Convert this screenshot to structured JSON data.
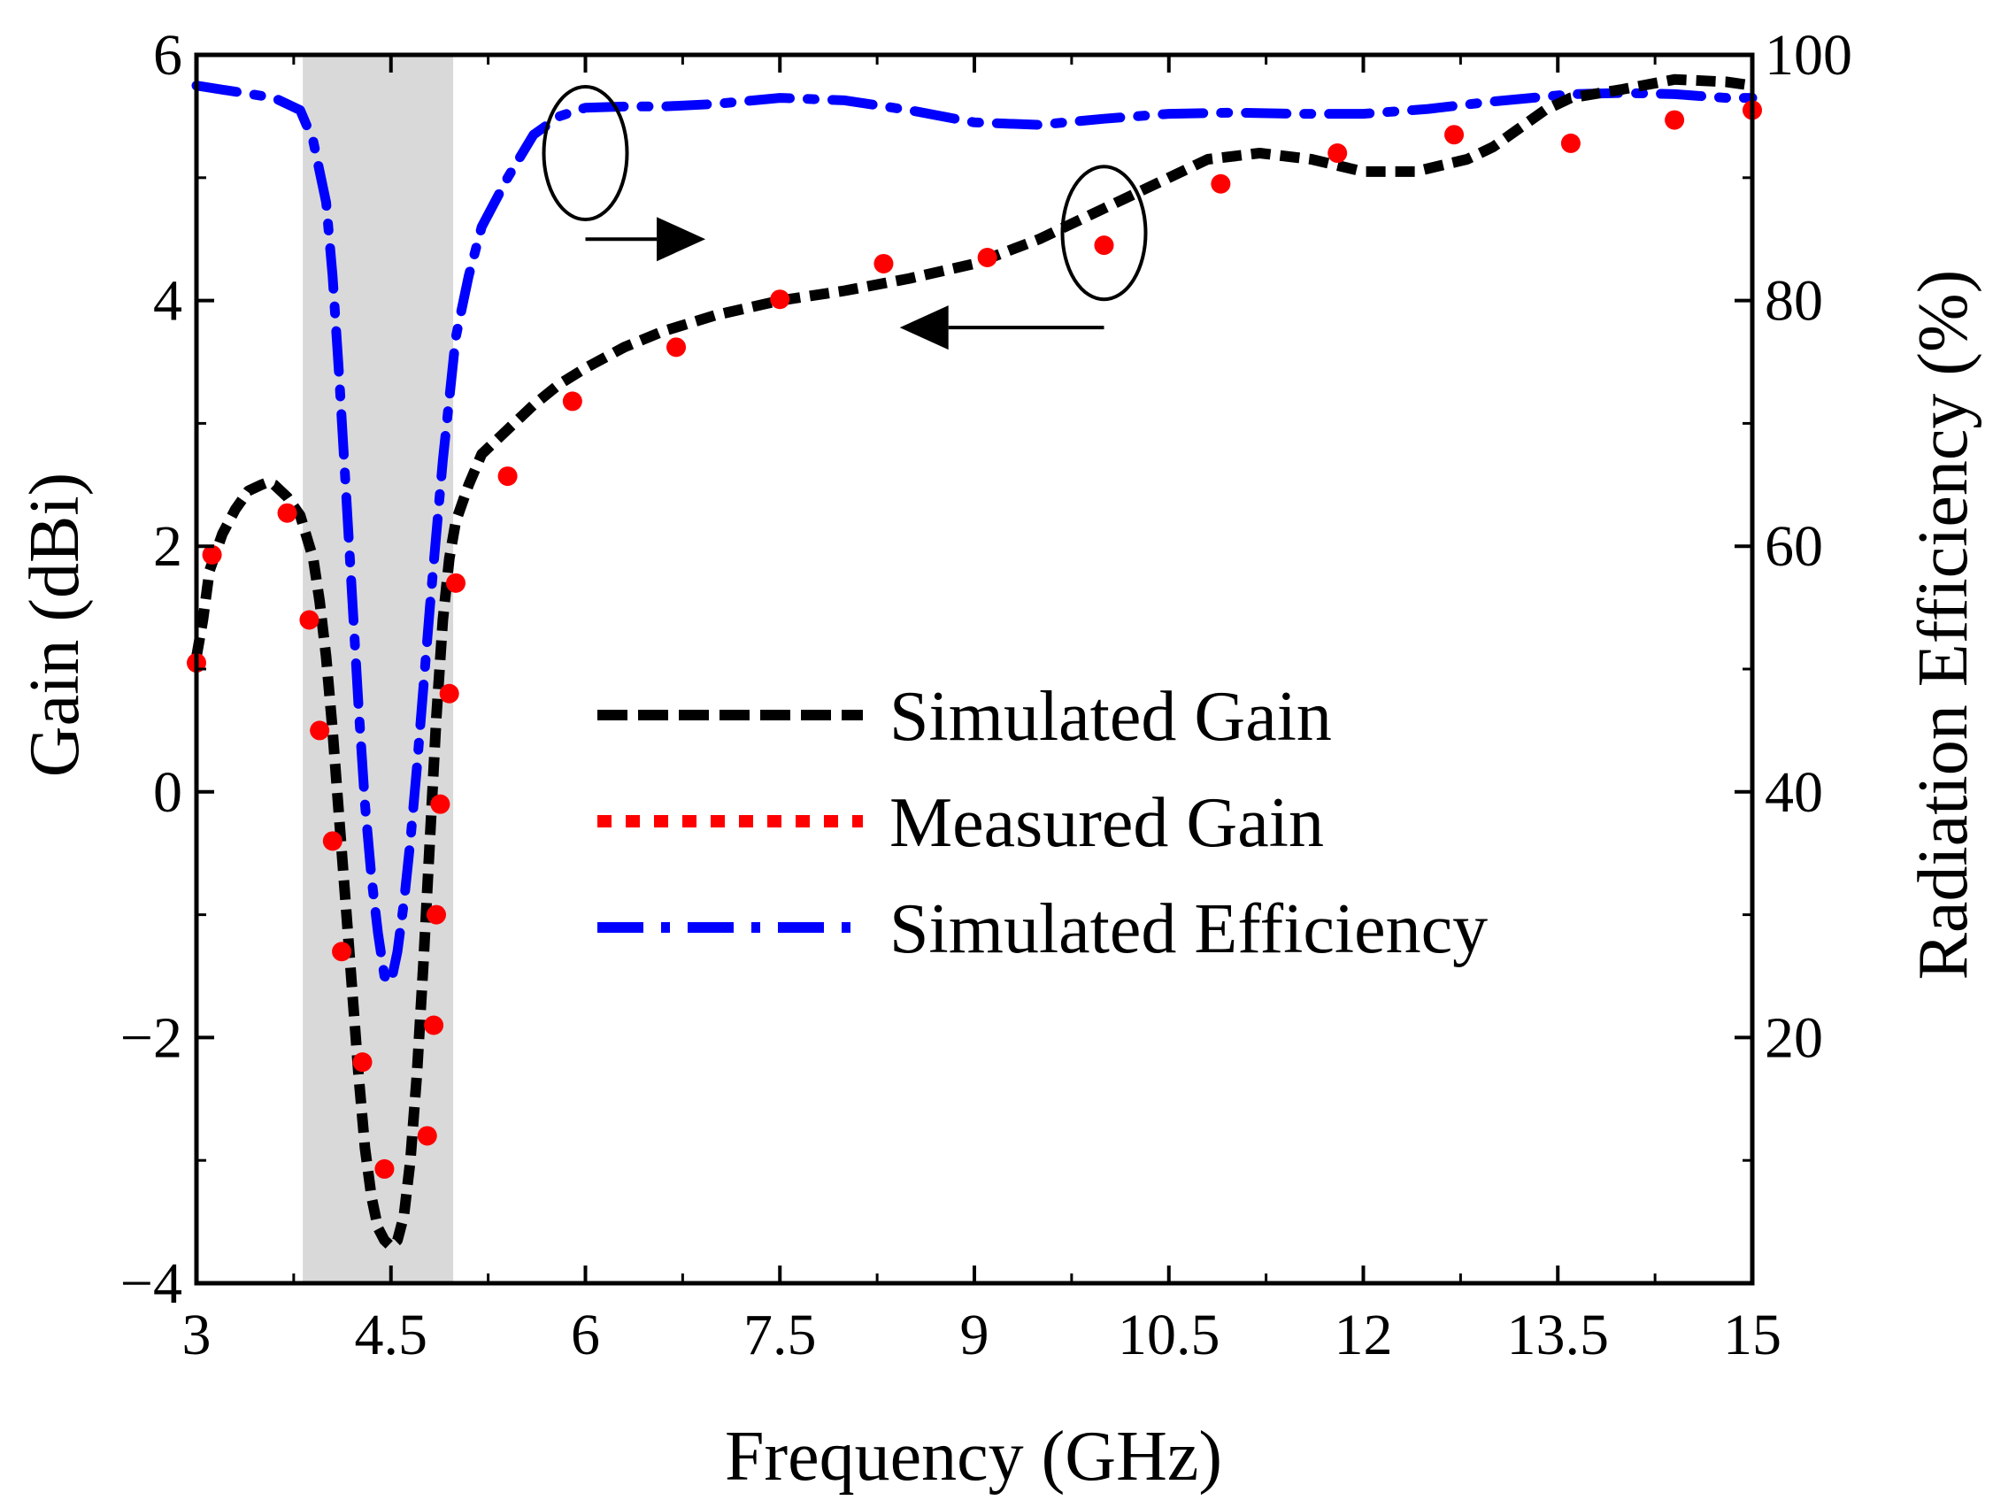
{
  "chart_data": {
    "type": "line",
    "title": "",
    "xlabel": "Frequency (GHz)",
    "ylabel": "Gain (dBi)",
    "y2label": "Radiation Efficiency (%)",
    "xlim": [
      3,
      15
    ],
    "ylim": [
      -4,
      6
    ],
    "y2lim": [
      0,
      100
    ],
    "xticks": [
      3,
      4.5,
      6,
      7.5,
      9,
      10.5,
      12,
      13.5,
      15
    ],
    "xtick_labels": [
      "3",
      "4.5",
      "6",
      "7.5",
      "9",
      "10.5",
      "12",
      "13.5",
      "15"
    ],
    "yticks": [
      -4,
      -2,
      0,
      2,
      4,
      6
    ],
    "ytick_labels": [
      "−4",
      "−2",
      "0",
      "2",
      "4",
      "6"
    ],
    "y2ticks": [
      20,
      40,
      60,
      80,
      100
    ],
    "y2tick_labels": [
      "20",
      "40",
      "60",
      "80",
      "100"
    ],
    "grid": false,
    "legend_position": "center",
    "shaded_band": {
      "x_start": 3.82,
      "x_end": 4.98,
      "color": "#d9d9d9"
    },
    "colors": {
      "simulated_gain": "#000000",
      "measured_gain": "#ff0000",
      "simulated_efficiency": "#0000ff"
    },
    "series": [
      {
        "name": "Simulated Gain",
        "axis": "left",
        "style": "dashed",
        "x": [
          3.0,
          3.05,
          3.1,
          3.2,
          3.3,
          3.4,
          3.5,
          3.55,
          3.6,
          3.7,
          3.8,
          3.9,
          3.95,
          4.0,
          4.05,
          4.1,
          4.15,
          4.2,
          4.25,
          4.3,
          4.35,
          4.4,
          4.45,
          4.5,
          4.55,
          4.6,
          4.65,
          4.7,
          4.75,
          4.8,
          4.85,
          4.9,
          4.95,
          5.0,
          5.1,
          5.2,
          5.4,
          5.6,
          5.8,
          6.0,
          6.3,
          6.6,
          7.0,
          7.5,
          8.0,
          8.5,
          9.0,
          9.5,
          10.0,
          10.5,
          10.8,
          11.2,
          11.6,
          12.0,
          12.4,
          12.8,
          13.0,
          13.2,
          13.4,
          13.6,
          14.0,
          14.4,
          14.8,
          15.0
        ],
        "y": [
          1.1,
          1.4,
          1.8,
          2.1,
          2.3,
          2.45,
          2.5,
          2.52,
          2.5,
          2.4,
          2.25,
          1.9,
          1.55,
          1.1,
          0.5,
          -0.2,
          -0.9,
          -1.6,
          -2.3,
          -2.9,
          -3.3,
          -3.55,
          -3.65,
          -3.7,
          -3.65,
          -3.45,
          -3.0,
          -2.3,
          -1.4,
          -0.4,
          0.6,
          1.4,
          1.9,
          2.2,
          2.5,
          2.75,
          2.95,
          3.15,
          3.32,
          3.45,
          3.62,
          3.75,
          3.88,
          4.0,
          4.08,
          4.18,
          4.3,
          4.5,
          4.75,
          5.0,
          5.15,
          5.2,
          5.15,
          5.05,
          5.05,
          5.15,
          5.25,
          5.4,
          5.55,
          5.65,
          5.72,
          5.8,
          5.78,
          5.75
        ]
      },
      {
        "name": "Measured Gain",
        "axis": "left",
        "style": "dotted",
        "x": [
          3.0,
          3.12,
          3.7,
          3.87,
          3.95,
          4.05,
          4.12,
          4.28,
          4.45,
          4.78,
          4.83,
          4.85,
          4.88,
          4.95,
          5.0,
          5.4,
          5.9,
          6.7,
          7.5,
          8.3,
          9.1,
          10.0,
          10.9,
          11.8,
          12.7,
          13.6,
          14.4,
          15.0
        ],
        "y": [
          1.05,
          1.93,
          2.27,
          1.4,
          0.5,
          -0.4,
          -1.3,
          -2.2,
          -3.07,
          -2.8,
          -1.9,
          -1.0,
          -0.1,
          0.8,
          1.7,
          2.57,
          3.18,
          3.62,
          4.01,
          4.3,
          4.35,
          4.45,
          4.95,
          5.2,
          5.35,
          5.28,
          5.47,
          5.55
        ]
      },
      {
        "name": "Simulated Efficiency",
        "axis": "right",
        "style": "dash-dot",
        "x": [
          3.0,
          3.3,
          3.6,
          3.8,
          3.9,
          4.0,
          4.05,
          4.1,
          4.15,
          4.2,
          4.25,
          4.3,
          4.35,
          4.4,
          4.45,
          4.5,
          4.55,
          4.6,
          4.65,
          4.7,
          4.75,
          4.8,
          4.85,
          4.9,
          4.95,
          5.0,
          5.1,
          5.2,
          5.4,
          5.6,
          5.8,
          6.0,
          6.3,
          6.6,
          7.0,
          7.5,
          8.0,
          8.5,
          9.0,
          9.5,
          10.0,
          10.5,
          11.0,
          11.5,
          12.0,
          12.5,
          13.0,
          13.3,
          13.6,
          14.0,
          14.4,
          14.8,
          15.0
        ],
        "y": [
          97.5,
          97.0,
          96.5,
          95.5,
          93.0,
          88.0,
          82.0,
          74.0,
          65.0,
          56.0,
          47.0,
          39.0,
          33.0,
          28.5,
          25.0,
          24.5,
          27.0,
          31.0,
          36.0,
          42.0,
          48.5,
          55.0,
          61.0,
          67.0,
          72.0,
          77.0,
          82.0,
          86.0,
          90.0,
          93.5,
          95.0,
          95.7,
          95.8,
          95.8,
          96.0,
          96.5,
          96.3,
          95.5,
          94.5,
          94.3,
          94.8,
          95.2,
          95.3,
          95.2,
          95.2,
          95.6,
          96.2,
          96.5,
          96.8,
          96.9,
          96.8,
          96.5,
          96.5
        ]
      }
    ],
    "annotations": [
      {
        "type": "ellipse-arrow",
        "points_to": "right-axis",
        "series": "Simulated Efficiency"
      },
      {
        "type": "ellipse-arrow",
        "points_to": "left-axis",
        "series": "Simulated Gain"
      }
    ]
  }
}
